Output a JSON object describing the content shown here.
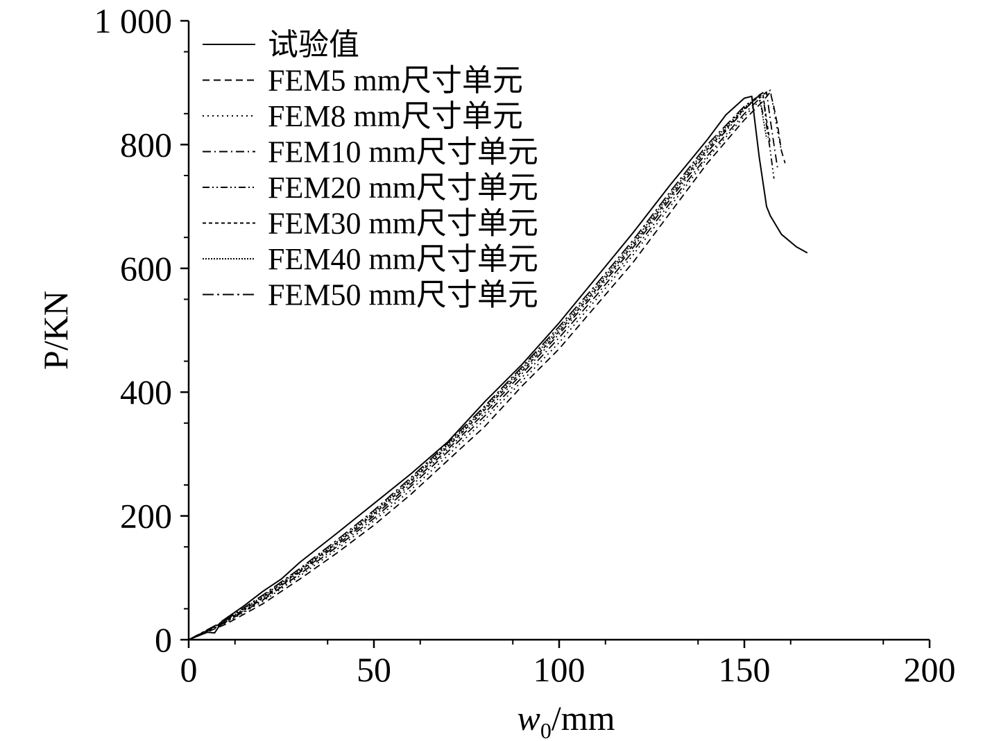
{
  "chart_data": {
    "type": "line",
    "xlabel": {
      "main": "w",
      "sub": "0",
      "unit": "/mm"
    },
    "ylabel": "P/KN",
    "xlim": [
      0,
      200
    ],
    "ylim": [
      0,
      1000
    ],
    "xticks": [
      0,
      50,
      100,
      150,
      200
    ],
    "xtick_labels": [
      "0",
      "50",
      "100",
      "150",
      "200"
    ],
    "yticks": [
      0,
      200,
      400,
      600,
      800,
      1000
    ],
    "ytick_labels": [
      "0",
      "200",
      "400",
      "600",
      "800",
      "1 000"
    ],
    "grid": false,
    "legend_position": "top-left",
    "series": [
      {
        "name": "试验值",
        "dash": "solid",
        "x": [
          0,
          5,
          7,
          8,
          9,
          15,
          20,
          25,
          30,
          40,
          50,
          60,
          70,
          80,
          90,
          100,
          110,
          120,
          130,
          140,
          145,
          150,
          152,
          154,
          156,
          157,
          160,
          164,
          167
        ],
        "y": [
          0,
          12,
          11,
          20,
          30,
          55,
          78,
          98,
          125,
          172,
          220,
          268,
          320,
          385,
          445,
          512,
          585,
          658,
          735,
          808,
          848,
          875,
          878,
          780,
          700,
          685,
          655,
          635,
          625
        ]
      },
      {
        "name": "FEM5 mm尺寸单元",
        "dash": "dashed",
        "x": [
          0,
          10,
          20,
          30,
          40,
          50,
          60,
          70,
          80,
          90,
          100,
          110,
          120,
          130,
          140,
          150,
          155,
          157,
          158,
          159,
          160,
          161
        ],
        "y": [
          0,
          25,
          58,
          98,
          140,
          185,
          235,
          290,
          345,
          410,
          470,
          540,
          610,
          690,
          770,
          840,
          870,
          885,
          860,
          830,
          790,
          770
        ]
      },
      {
        "name": "FEM8 mm尺寸单元",
        "dash": "dotted",
        "x": [
          0,
          10,
          20,
          30,
          40,
          50,
          60,
          70,
          80,
          90,
          100,
          110,
          120,
          130,
          140,
          150,
          155,
          157,
          158,
          159,
          160
        ],
        "y": [
          0,
          27,
          62,
          103,
          146,
          192,
          242,
          298,
          356,
          418,
          480,
          550,
          622,
          700,
          778,
          846,
          876,
          888,
          855,
          820,
          790
        ]
      },
      {
        "name": "FEM10 mm尺寸单元",
        "dash": "dash-dot",
        "x": [
          0,
          10,
          20,
          30,
          40,
          50,
          60,
          70,
          80,
          90,
          100,
          110,
          120,
          130,
          140,
          150,
          155,
          156,
          157,
          158,
          159
        ],
        "y": [
          0,
          28,
          64,
          106,
          150,
          196,
          248,
          304,
          362,
          424,
          488,
          556,
          628,
          706,
          782,
          850,
          880,
          885,
          840,
          800,
          760
        ]
      },
      {
        "name": "FEM20 mm尺寸单元",
        "dash": "dash-dot-dot",
        "x": [
          0,
          10,
          20,
          30,
          40,
          50,
          60,
          70,
          80,
          90,
          100,
          110,
          120,
          130,
          140,
          150,
          154,
          155,
          156,
          157,
          158
        ],
        "y": [
          0,
          29,
          66,
          109,
          153,
          200,
          252,
          308,
          367,
          430,
          494,
          562,
          634,
          712,
          788,
          856,
          880,
          884,
          830,
          790,
          745
        ]
      },
      {
        "name": "FEM30 mm尺寸单元",
        "dash": "short-dash",
        "x": [
          0,
          10,
          20,
          30,
          40,
          50,
          60,
          70,
          80,
          90,
          100,
          110,
          120,
          130,
          140,
          150,
          154,
          155,
          156,
          157
        ],
        "y": [
          0,
          30,
          68,
          111,
          156,
          203,
          256,
          312,
          372,
          434,
          498,
          566,
          638,
          716,
          792,
          858,
          878,
          882,
          840,
          800
        ]
      },
      {
        "name": "FEM40 mm尺寸单元",
        "dash": "dense-dot",
        "x": [
          0,
          10,
          20,
          30,
          40,
          50,
          60,
          70,
          80,
          90,
          100,
          110,
          120,
          130,
          140,
          150,
          153,
          154,
          155,
          156
        ],
        "y": [
          0,
          31,
          70,
          113,
          158,
          206,
          259,
          315,
          375,
          438,
          502,
          570,
          642,
          720,
          796,
          860,
          874,
          880,
          845,
          810
        ]
      },
      {
        "name": "FEM50 mm尺寸单元",
        "dash": "long-dash-dot",
        "x": [
          0,
          10,
          20,
          30,
          40,
          50,
          60,
          70,
          80,
          90,
          100,
          110,
          120,
          130,
          140,
          150,
          153,
          154,
          155
        ],
        "y": [
          0,
          32,
          72,
          115,
          161,
          209,
          262,
          318,
          378,
          441,
          506,
          574,
          646,
          724,
          800,
          862,
          875,
          878,
          850
        ]
      }
    ]
  }
}
